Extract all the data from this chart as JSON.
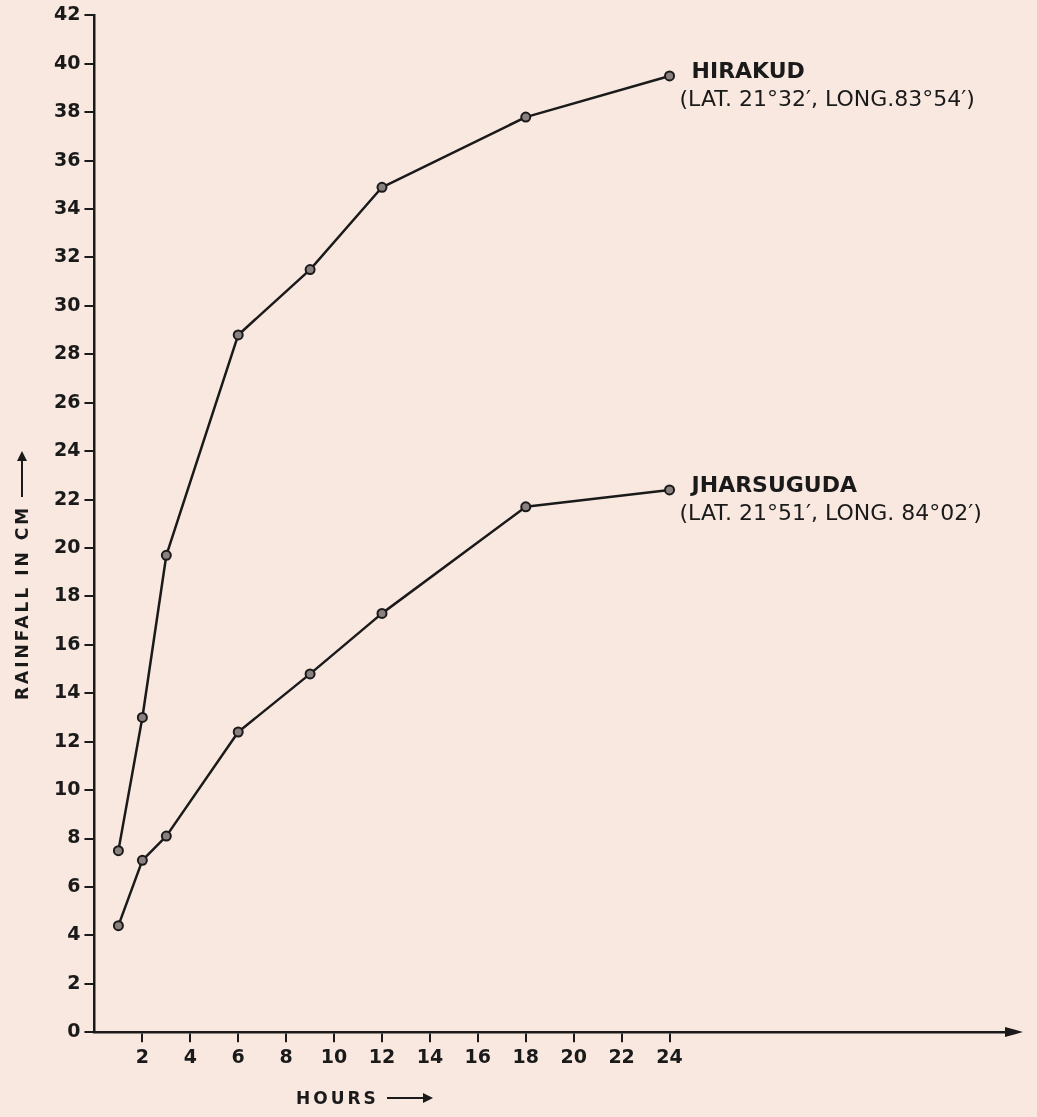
{
  "chart_data": {
    "type": "line",
    "xlabel": "HOURS",
    "ylabel": "RAINFALL IN CM",
    "x": [
      1,
      2,
      3,
      6,
      9,
      12,
      18,
      24
    ],
    "series": [
      {
        "name": "HIRAKUD",
        "color": "#1a1a1a",
        "values": [
          7.5,
          13,
          19.7,
          28.8,
          31.5,
          34.9,
          37.8,
          39.5
        ]
      },
      {
        "name": "JHARSUGUDA",
        "color": "#1a1a1a",
        "values": [
          4.4,
          7.1,
          8.1,
          12.4,
          14.8,
          17.3,
          21.7,
          22.4
        ]
      }
    ],
    "annotations": [
      {
        "text": "(LAT. 21°32′, LONG.83°54′)",
        "x": 24,
        "y": 39.5
      },
      {
        "text": "(LAT. 21°51′, LONG. 84°02′)",
        "x": 24,
        "y": 22.4
      }
    ],
    "xlim": [
      0,
      38
    ],
    "xticks": [
      2,
      4,
      6,
      8,
      10,
      12,
      14,
      16,
      18,
      20,
      22,
      24
    ],
    "ylim": [
      0,
      42
    ],
    "yticks": [
      0,
      2,
      4,
      6,
      8,
      10,
      12,
      14,
      16,
      18,
      20,
      22,
      24,
      26,
      28,
      30,
      32,
      34,
      36,
      38,
      40,
      42
    ],
    "grid": false,
    "legend": false,
    "marker": "circle",
    "line_style": "solid"
  }
}
